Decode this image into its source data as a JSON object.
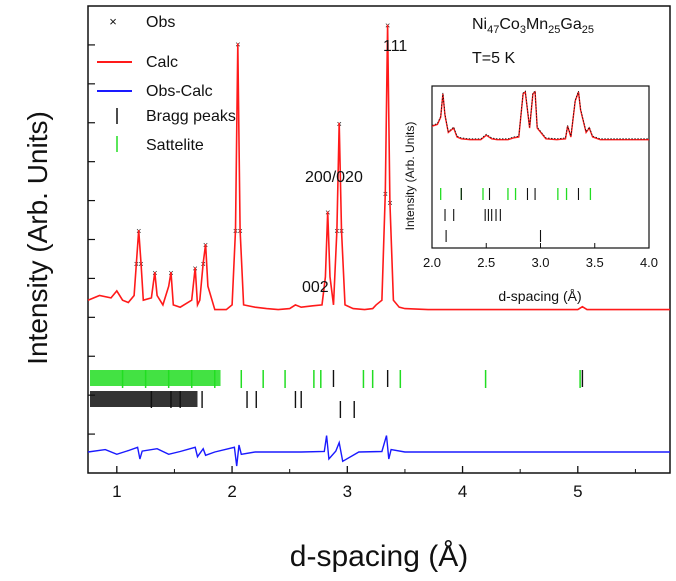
{
  "chart_data": [
    {
      "type": "line",
      "title": "",
      "xlabel": "d-spacing (Å)",
      "ylabel": "Intensity (Arb. Units)",
      "xlim": [
        0.75,
        5.8
      ],
      "ylim": [
        0,
        1
      ],
      "x_ticks": [
        "1",
        "2",
        "3",
        "4",
        "5"
      ],
      "grid": false,
      "legend_position": "top-left",
      "composition_label": "Ni47Co3Mn25Ga25",
      "composition_parts": [
        "Ni",
        "47",
        "Co",
        "3",
        "Mn",
        "25",
        "Ga",
        "25"
      ],
      "temperature_label": "T=5 K",
      "legend": [
        "Obs",
        "Calc",
        "Obs-Calc",
        "Bragg peaks",
        "Sattelite"
      ],
      "annotations": [
        {
          "text": "111",
          "x": 3.35,
          "y": 0.96
        },
        {
          "text": "200/020",
          "x": 2.93,
          "y": 0.69
        },
        {
          "text": "002",
          "x": 2.82,
          "y": 0.37
        }
      ],
      "series": [
        {
          "name": "Calc",
          "color": "#ff1a1a",
          "x": [
            0.75,
            0.85,
            0.95,
            1.0,
            1.05,
            1.1,
            1.15,
            1.17,
            1.19,
            1.21,
            1.23,
            1.3,
            1.33,
            1.35,
            1.4,
            1.45,
            1.47,
            1.49,
            1.55,
            1.65,
            1.68,
            1.7,
            1.72,
            1.75,
            1.77,
            1.79,
            1.85,
            1.95,
            2.0,
            2.03,
            2.05,
            2.07,
            2.1,
            2.2,
            2.3,
            2.4,
            2.5,
            2.55,
            2.6,
            2.7,
            2.78,
            2.81,
            2.83,
            2.85,
            2.88,
            2.91,
            2.93,
            2.95,
            2.98,
            3.05,
            3.15,
            3.22,
            3.25,
            3.3,
            3.33,
            3.35,
            3.37,
            3.4,
            3.45,
            3.5,
            3.7,
            4.0,
            4.5,
            5.0,
            5.04,
            5.08,
            5.3,
            5.8
          ],
          "values": [
            0.37,
            0.38,
            0.375,
            0.39,
            0.37,
            0.365,
            0.38,
            0.45,
            0.52,
            0.45,
            0.37,
            0.375,
            0.43,
            0.38,
            0.36,
            0.4,
            0.43,
            0.36,
            0.355,
            0.37,
            0.44,
            0.36,
            0.37,
            0.45,
            0.49,
            0.4,
            0.35,
            0.35,
            0.36,
            0.52,
            0.92,
            0.52,
            0.36,
            0.355,
            0.352,
            0.35,
            0.352,
            0.36,
            0.355,
            0.358,
            0.36,
            0.42,
            0.56,
            0.42,
            0.36,
            0.52,
            0.75,
            0.52,
            0.36,
            0.352,
            0.35,
            0.352,
            0.36,
            0.37,
            0.6,
            0.96,
            0.58,
            0.37,
            0.355,
            0.352,
            0.35,
            0.35,
            0.35,
            0.35,
            0.356,
            0.35,
            0.35,
            0.35
          ]
        },
        {
          "name": "Obs-Calc",
          "color": "#1a1aff",
          "x": [
            0.75,
            0.9,
            1.0,
            1.1,
            1.18,
            1.2,
            1.22,
            1.35,
            1.45,
            1.55,
            1.68,
            1.7,
            1.75,
            1.77,
            1.85,
            2.02,
            2.04,
            2.06,
            2.08,
            2.2,
            2.6,
            2.8,
            2.82,
            2.84,
            2.9,
            2.93,
            2.96,
            3.1,
            3.3,
            3.34,
            3.36,
            3.38,
            3.5,
            4.0,
            5.0,
            5.8
          ],
          "values": [
            0.045,
            0.05,
            0.04,
            0.048,
            0.055,
            0.03,
            0.047,
            0.052,
            0.04,
            0.046,
            0.055,
            0.035,
            0.052,
            0.038,
            0.045,
            0.055,
            0.015,
            0.06,
            0.04,
            0.045,
            0.045,
            0.046,
            0.08,
            0.03,
            0.047,
            0.065,
            0.025,
            0.045,
            0.046,
            0.08,
            0.03,
            0.05,
            0.045,
            0.045,
            0.045,
            0.045
          ]
        }
      ],
      "bragg_peaks": [
        2.88,
        2.94,
        3.06,
        3.35,
        5.04,
        1.74,
        2.13,
        2.21,
        2.55,
        2.6,
        1.3,
        1.47,
        1.55
      ],
      "satellite_peaks": [
        2.08,
        2.27,
        2.46,
        2.71,
        2.77,
        3.14,
        3.22,
        3.46,
        4.2,
        5.02,
        1.05,
        1.25,
        1.45,
        1.65,
        1.85
      ],
      "inset": {
        "xlabel": "d-spacing (Å)",
        "ylabel": "Intensity (Arb. Units)",
        "xlim": [
          2.0,
          4.0
        ],
        "x_ticks": [
          "2.0",
          "2.5",
          "3.0",
          "3.5",
          "4.0"
        ],
        "x": [
          2.0,
          2.05,
          2.08,
          2.1,
          2.12,
          2.15,
          2.2,
          2.23,
          2.27,
          2.35,
          2.45,
          2.5,
          2.55,
          2.6,
          2.7,
          2.75,
          2.8,
          2.84,
          2.86,
          2.9,
          2.93,
          2.95,
          2.97,
          3.05,
          3.15,
          3.23,
          3.25,
          3.28,
          3.32,
          3.35,
          3.37,
          3.42,
          3.45,
          3.48,
          3.55,
          3.7,
          4.0
        ],
        "values": [
          0.62,
          0.64,
          0.72,
          0.98,
          0.74,
          0.55,
          0.6,
          0.5,
          0.48,
          0.47,
          0.47,
          0.52,
          0.48,
          0.47,
          0.47,
          0.49,
          0.5,
          0.98,
          1.0,
          0.6,
          0.98,
          1.0,
          0.6,
          0.48,
          0.47,
          0.48,
          0.62,
          0.5,
          0.9,
          1.0,
          0.8,
          0.55,
          0.6,
          0.5,
          0.47,
          0.47,
          0.47
        ],
        "satellite_peaks": [
          2.08,
          2.27,
          2.47,
          2.7,
          2.77,
          3.16,
          3.24,
          3.46
        ],
        "bragg_peaks_row1": [
          2.27,
          2.53,
          2.88,
          2.95,
          3.35
        ],
        "bragg_peaks_row2": [
          2.12,
          2.2,
          2.49,
          2.52,
          2.55,
          2.59,
          2.63
        ],
        "bragg_peaks_row3": [
          2.13,
          3.0
        ]
      }
    }
  ]
}
